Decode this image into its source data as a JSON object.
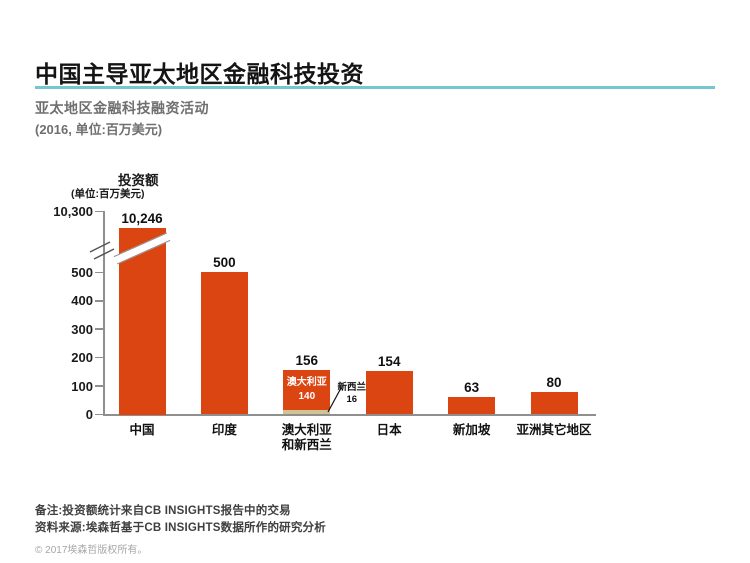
{
  "page": {
    "title": "中国主导亚太地区金融科技投资",
    "subtitle_line1": "亚太地区金融科技融资活动",
    "subtitle_line2": "(2016, 单位:百万美元)",
    "accent_color": "#74C6CF"
  },
  "chart_data": {
    "type": "bar",
    "title": "亚太地区金融科技融资活动",
    "year": "2016",
    "unit": "百万美元",
    "ylabel": "投资额",
    "ylabel_sub": "(单位:百万美元)",
    "grid": false,
    "legend": false,
    "axis_break": true,
    "broken_bar": "中国",
    "ylim_display": [
      0,
      550
    ],
    "yticks": [
      10300,
      500,
      400,
      300,
      200,
      100,
      0
    ],
    "categories": [
      "中国",
      "印度",
      "澳大利亚\n和新西兰",
      "日本",
      "新加坡",
      "亚洲其它地区"
    ],
    "values": [
      10246,
      500,
      156,
      154,
      63,
      80
    ],
    "bars": [
      {
        "category": "中国",
        "value": 10246,
        "label": "10,246",
        "broken": true
      },
      {
        "category": "印度",
        "value": 500,
        "label": "500"
      },
      {
        "category": "澳大利亚\n和新西兰",
        "value": 156,
        "label": "156",
        "segments": [
          {
            "name": "澳大利亚",
            "value": 140,
            "display": "140",
            "color_key": "orange",
            "label_inside": true
          },
          {
            "name": "新西兰",
            "value": 16,
            "display": "16",
            "color_key": "beige",
            "label_callout": true
          }
        ]
      },
      {
        "category": "日本",
        "value": 154,
        "label": "154"
      },
      {
        "category": "新加坡",
        "value": 63,
        "label": "63"
      },
      {
        "category": "亚洲其它地区",
        "value": 80,
        "label": "80"
      }
    ],
    "colors": {
      "bar": "#DB4512",
      "segment_beige": "#D2C392",
      "axis": "#8f8f8f"
    }
  },
  "footer": {
    "note1": "备注:投资额统计来自CB INSIGHTS报告中的交易",
    "note2": "资料来源:埃森哲基于CB INSIGHTS数据所作的研究分析",
    "copyright": "© 2017埃森哲版权所有。"
  }
}
